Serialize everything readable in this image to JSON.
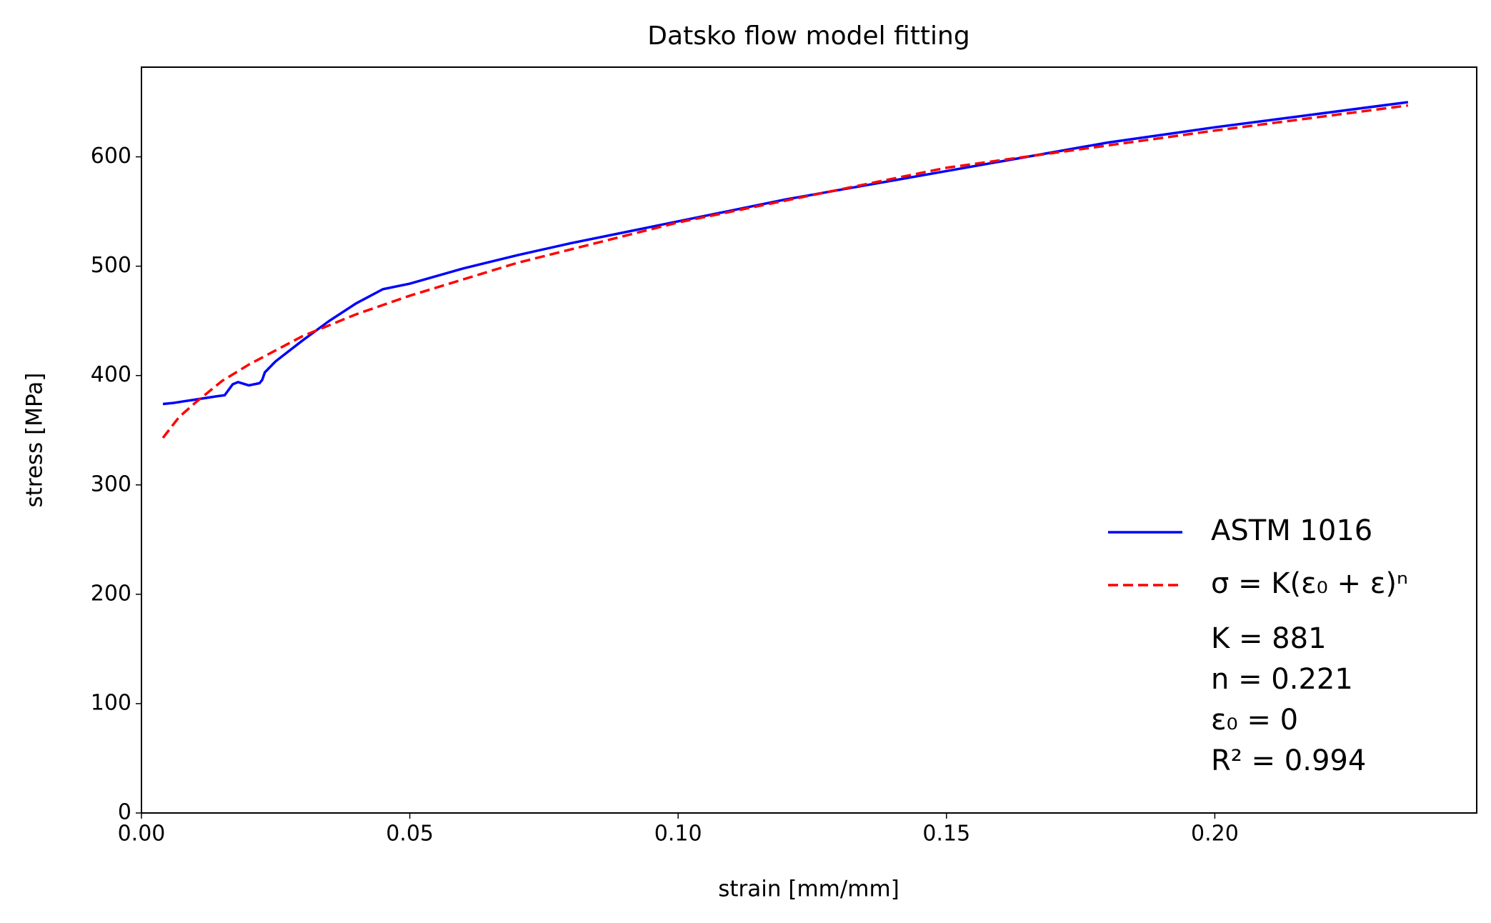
{
  "chart_data": {
    "type": "line",
    "title": "Datsko flow model fitting",
    "xlabel": "strain [mm/mm]",
    "ylabel": "stress [MPa]",
    "xlim": [
      0,
      0.2488
    ],
    "ylim": [
      0,
      682
    ],
    "xticks": [
      {
        "value": 0,
        "label": "0.00"
      },
      0.05,
      {
        "value": 0.1,
        "label": "0.10"
      },
      0.15,
      {
        "value": 0.2,
        "label": "0.20"
      }
    ],
    "yticks": [
      0,
      100,
      200,
      300,
      400,
      500,
      600
    ],
    "series": [
      {
        "name": "ASTM 1016",
        "color": "#0000ff",
        "style": "solid",
        "x": [
          0.004,
          0.006,
          0.01,
          0.014,
          0.0155,
          0.017,
          0.018,
          0.02,
          0.022,
          0.0225,
          0.023,
          0.025,
          0.03,
          0.035,
          0.04,
          0.045,
          0.05,
          0.06,
          0.07,
          0.08,
          0.1,
          0.12,
          0.15,
          0.18,
          0.2,
          0.236
        ],
        "values": [
          374,
          375,
          378,
          381,
          382,
          392,
          394,
          391,
          393,
          396,
          403,
          413,
          432,
          450,
          466,
          479,
          484,
          498,
          510,
          521,
          541,
          561,
          587,
          613,
          627,
          650
        ]
      },
      {
        "name": "σ = K(ε₀ + ε)ⁿ",
        "color": "#ff0000",
        "style": "dashed",
        "x": [
          0.004,
          0.007,
          0.01,
          0.015,
          0.02,
          0.03,
          0.04,
          0.05,
          0.07,
          0.1,
          0.15,
          0.2,
          0.236
        ],
        "values": [
          343,
          362,
          375,
          395,
          410,
          436,
          456,
          473,
          503,
          540,
          590,
          624,
          647
        ]
      }
    ],
    "annotations": [
      "K = 881",
      "n = 0.221",
      "ε₀ = 0",
      "R² = 0.994"
    ],
    "legend": "lower right"
  }
}
